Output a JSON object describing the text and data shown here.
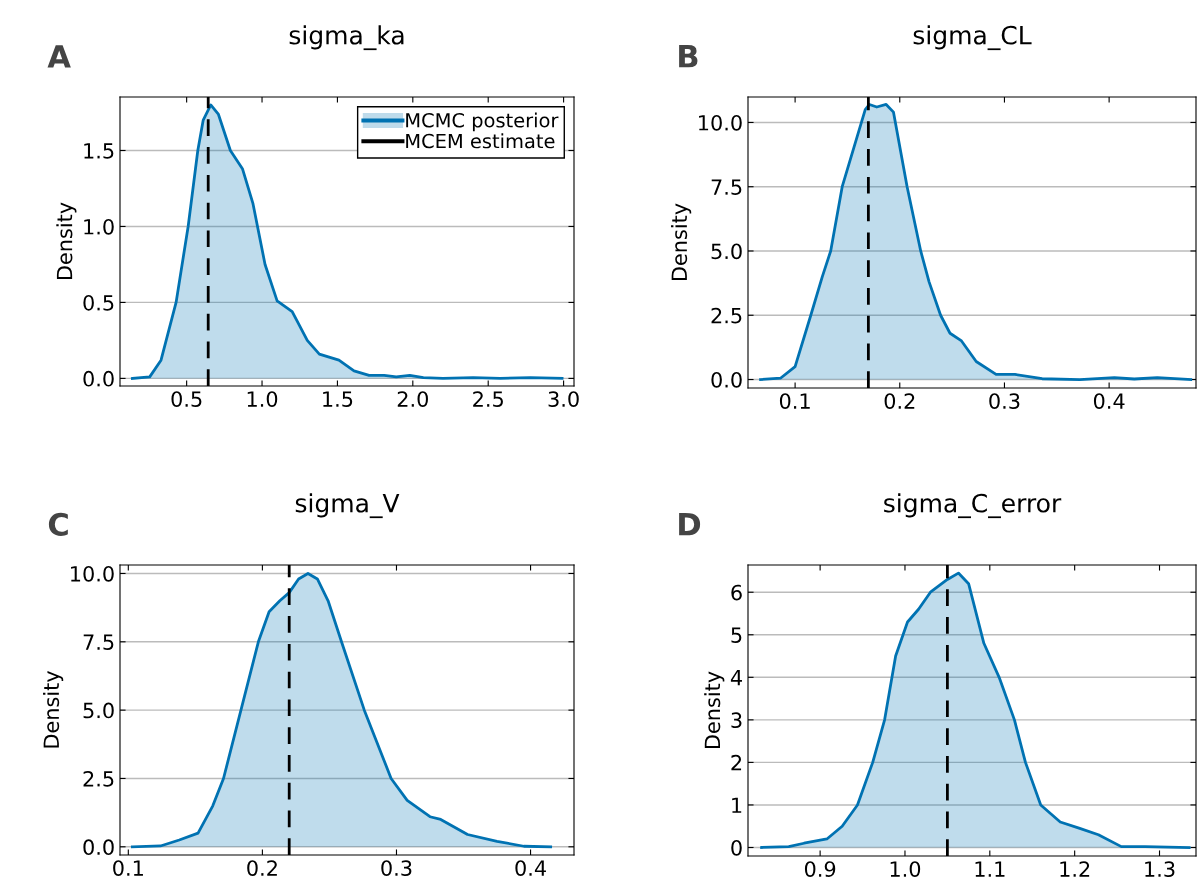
{
  "chart_data": [
    {
      "type": "area",
      "title": "sigma_ka",
      "ylabel": "Density",
      "annotations": [
        "A"
      ],
      "legend": "top right",
      "grid": "y",
      "xlim": [
        0.058,
        3.069
      ],
      "ylim": [
        -0.05,
        1.852
      ],
      "xticks": [
        0.5,
        {
          "value": 1,
          "label": "1.0"
        },
        1.5,
        {
          "value": 2,
          "label": "2.0"
        },
        2.5,
        {
          "value": 3,
          "label": "3.0"
        }
      ],
      "yticks": [
        {
          "value": 0,
          "label": "0.0"
        },
        0.5,
        {
          "value": 1,
          "label": "1.0"
        },
        1.5
      ],
      "series": [
        {
          "name": "MCMC posterior",
          "color": "#0072b2",
          "x": [
            0.14,
            0.255,
            0.33,
            0.43,
            0.51,
            0.574,
            0.61,
            0.66,
            0.71,
            0.79,
            0.87,
            0.94,
            1.02,
            1.1,
            1.2,
            1.3,
            1.38,
            1.51,
            1.61,
            1.71,
            1.81,
            1.89,
            1.98,
            2.07,
            2.2,
            2.4,
            2.58,
            2.78,
            2.99
          ],
          "values": [
            0,
            0.01,
            0.12,
            0.5,
            1.0,
            1.5,
            1.7,
            1.8,
            1.74,
            1.5,
            1.38,
            1.15,
            0.75,
            0.51,
            0.44,
            0.25,
            0.16,
            0.12,
            0.05,
            0.02,
            0.02,
            0.01,
            0.02,
            0.005,
            0,
            0.005,
            0,
            0.005,
            0
          ]
        }
      ],
      "ref_lines": [
        {
          "axis": "x",
          "value": 0.643,
          "label": "MCEM estimate",
          "color": "#000000",
          "line_style": "dashed"
        }
      ]
    },
    {
      "type": "area",
      "title": "sigma_CL",
      "ylabel": "Density",
      "annotations": [
        "B"
      ],
      "grid": "y",
      "xlim": [
        0.055,
        0.483
      ],
      "ylim": [
        -0.33,
        10.99
      ],
      "xticks": [
        0.1,
        0.2,
        0.3,
        0.4
      ],
      "yticks": [
        {
          "value": 0,
          "label": "0.0"
        },
        2.5,
        {
          "value": 5,
          "label": "5.0"
        },
        7.5,
        {
          "value": 10,
          "label": "10.0"
        }
      ],
      "series": [
        {
          "color": "#0072b2",
          "x": [
            0.067,
            0.086,
            0.1,
            0.115,
            0.126,
            0.134,
            0.145,
            0.156,
            0.167,
            0.171,
            0.178,
            0.187,
            0.194,
            0.207,
            0.22,
            0.228,
            0.239,
            0.248,
            0.259,
            0.273,
            0.292,
            0.31,
            0.336,
            0.372,
            0.405,
            0.424,
            0.446,
            0.478
          ],
          "values": [
            0,
            0.05,
            0.5,
            2.5,
            4.0,
            5.0,
            7.5,
            9.0,
            10.5,
            10.7,
            10.6,
            10.7,
            10.4,
            7.5,
            5.0,
            3.8,
            2.5,
            1.8,
            1.5,
            0.7,
            0.2,
            0.2,
            0.03,
            0,
            0.07,
            0.02,
            0.07,
            0
          ]
        }
      ],
      "ref_lines": [
        {
          "axis": "x",
          "value": 0.17,
          "color": "#000000",
          "line_style": "dashed"
        }
      ]
    },
    {
      "type": "area",
      "title": "sigma_V",
      "ylabel": "Density",
      "annotations": [
        "C"
      ],
      "grid": "y",
      "xlim": [
        0.0938,
        0.4324
      ],
      "ylim": [
        -0.3,
        10.31
      ],
      "xticks": [
        0.1,
        0.2,
        0.3,
        0.4
      ],
      "yticks": [
        {
          "value": 0,
          "label": "0.0"
        },
        2.5,
        {
          "value": 5,
          "label": "5.0"
        },
        7.5,
        {
          "value": 10,
          "label": "10.0"
        }
      ],
      "series": [
        {
          "color": "#0072b2",
          "x": [
            0.103,
            0.124,
            0.138,
            0.152,
            0.163,
            0.171,
            0.184,
            0.197,
            0.205,
            0.213,
            0.22,
            0.227,
            0.234,
            0.241,
            0.249,
            0.259,
            0.276,
            0.296,
            0.308,
            0.325,
            0.333,
            0.353,
            0.375,
            0.395,
            0.415
          ],
          "values": [
            0,
            0.03,
            0.25,
            0.5,
            1.5,
            2.5,
            5.0,
            7.5,
            8.6,
            9.0,
            9.3,
            9.8,
            10.0,
            9.8,
            9.0,
            7.5,
            5.0,
            2.5,
            1.7,
            1.1,
            1.0,
            0.45,
            0.2,
            0.02,
            0
          ]
        }
      ],
      "ref_lines": [
        {
          "axis": "x",
          "value": 0.22,
          "color": "#000000",
          "line_style": "dashed"
        }
      ]
    },
    {
      "type": "area",
      "title": "sigma_C_error",
      "ylabel": "Density",
      "annotations": [
        "D"
      ],
      "grid": "y",
      "xlim": [
        0.815,
        1.343
      ],
      "ylim": [
        -0.2,
        6.64
      ],
      "xticks": [
        0.9,
        {
          "value": 1,
          "label": "1.0"
        },
        1.1,
        1.2,
        1.3
      ],
      "yticks": [
        0,
        1,
        2,
        3,
        4,
        5,
        6
      ],
      "series": [
        {
          "color": "#0072b2",
          "x": [
            0.831,
            0.863,
            0.881,
            0.908,
            0.926,
            0.944,
            0.962,
            0.976,
            0.989,
            1.003,
            1.016,
            1.03,
            1.05,
            1.063,
            1.075,
            1.093,
            1.111,
            1.129,
            1.142,
            1.16,
            1.183,
            1.206,
            1.228,
            1.255,
            1.283,
            1.335
          ],
          "values": [
            0,
            0.02,
            0.1,
            0.2,
            0.5,
            1.0,
            2.0,
            3.0,
            4.5,
            5.3,
            5.6,
            6.0,
            6.3,
            6.45,
            6.2,
            4.8,
            4.0,
            3.0,
            2.0,
            1.0,
            0.6,
            0.45,
            0.3,
            0.02,
            0.02,
            0
          ]
        }
      ],
      "ref_lines": [
        {
          "axis": "x",
          "value": 1.05,
          "color": "#000000",
          "line_style": "dashed"
        }
      ]
    }
  ]
}
